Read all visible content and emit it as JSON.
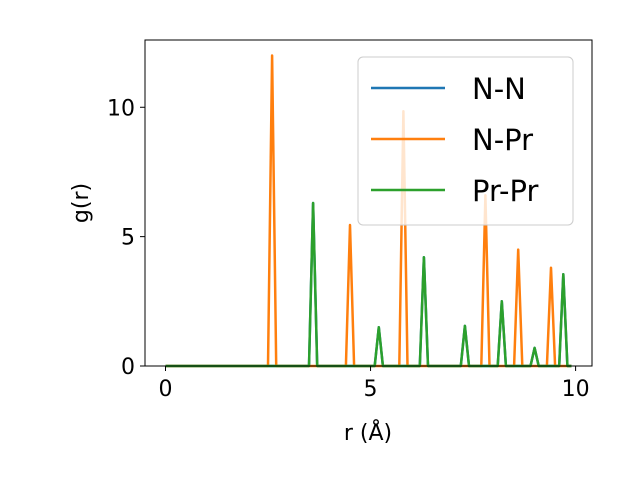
{
  "chart_data": {
    "type": "line",
    "xlabel": "r (Å)",
    "ylabel": "g(r)",
    "xlim": [
      -0.5,
      10.4
    ],
    "ylim": [
      0,
      12.6
    ],
    "xticks": [
      0,
      5,
      10
    ],
    "yticks": [
      0,
      5,
      10
    ],
    "grid": false,
    "legend_placement": "top-right",
    "series": [
      {
        "name": "N-N",
        "color": "#1f77b4",
        "x": [
          0,
          3.5,
          3.6,
          3.7,
          5.1,
          5.2,
          5.3,
          6.2,
          6.3,
          6.4,
          7.2,
          7.3,
          7.4,
          8.1,
          8.2,
          8.3,
          8.9,
          9.0,
          9.1,
          9.6,
          9.7,
          9.8,
          9.9
        ],
        "y": [
          0,
          0,
          6.3,
          0,
          0,
          1.5,
          0,
          0,
          4.2,
          0,
          0,
          1.55,
          0,
          0,
          2.5,
          0,
          0,
          0.7,
          0,
          0,
          3.55,
          0,
          0
        ]
      },
      {
        "name": "N-Pr",
        "color": "#ff7f0e",
        "x": [
          0,
          2.5,
          2.6,
          2.7,
          4.4,
          4.5,
          4.6,
          5.7,
          5.8,
          5.9,
          7.7,
          7.8,
          7.9,
          8.5,
          8.6,
          8.7,
          9.3,
          9.4,
          9.5,
          9.9
        ],
        "y": [
          0,
          0,
          12.0,
          0,
          0,
          5.45,
          0,
          0,
          9.85,
          0,
          0,
          6.6,
          0,
          0,
          4.5,
          0,
          0,
          3.8,
          0,
          0
        ]
      },
      {
        "name": "Pr-Pr",
        "color": "#2ca02c",
        "x": [
          0,
          3.5,
          3.6,
          3.7,
          5.1,
          5.2,
          5.3,
          6.2,
          6.3,
          6.4,
          7.2,
          7.3,
          7.4,
          8.1,
          8.2,
          8.3,
          8.9,
          9.0,
          9.1,
          9.6,
          9.7,
          9.8,
          9.9
        ],
        "y": [
          0,
          0,
          6.3,
          0,
          0,
          1.5,
          0,
          0,
          4.2,
          0,
          0,
          1.55,
          0,
          0,
          2.5,
          0,
          0,
          0.7,
          0,
          0,
          3.55,
          0,
          0
        ]
      }
    ]
  }
}
